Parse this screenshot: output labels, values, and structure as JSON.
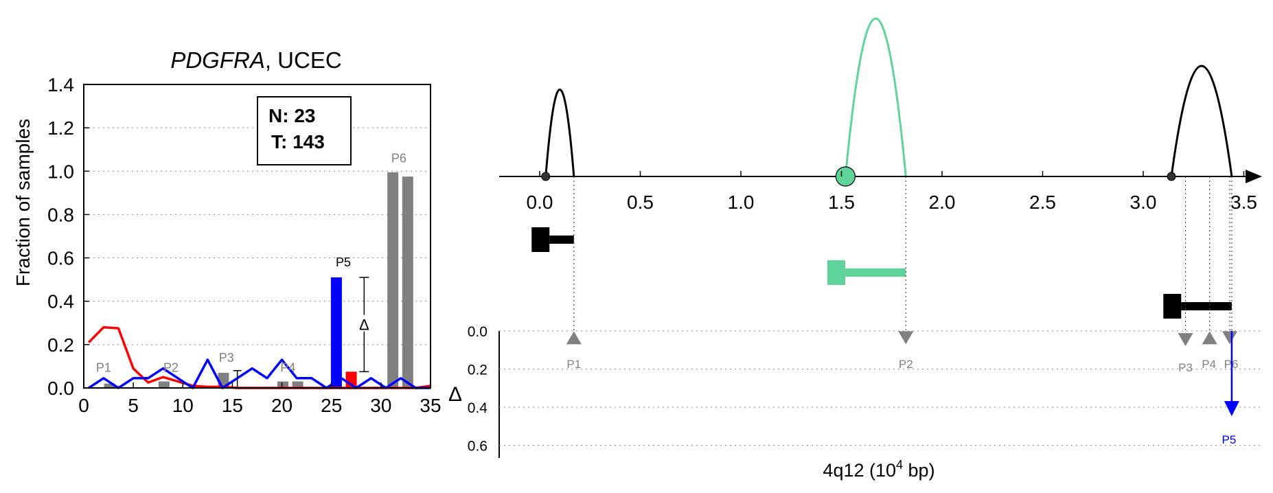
{
  "chart_data": [
    {
      "type": "bar",
      "title_gene": "PDGFRA",
      "title_rest": ", UCEC",
      "ylabel": "Fraction of samples",
      "xlim": [
        0,
        35
      ],
      "ylim": [
        0,
        1.4
      ],
      "xticks": [
        "0",
        "5",
        "10",
        "15",
        "20",
        "25",
        "30",
        "35"
      ],
      "yticks": [
        "0.0",
        "0.2",
        "0.4",
        "0.6",
        "0.8",
        "1.0",
        "1.2",
        "1.4"
      ],
      "grid": "horizontal dotted",
      "counts": {
        "n_label": "N: 23",
        "t_label": "T: 143"
      },
      "colors": {
        "tumor": "#0000ff",
        "normal": "#ff0000",
        "peak": "#808080"
      },
      "series": [
        {
          "color": "#ff0000",
          "x": [
            0.5,
            2,
            3.5,
            5,
            6.5,
            8,
            9.5,
            11,
            12.5,
            14,
            15.5,
            17,
            18.5,
            20,
            21.5,
            23,
            24.5,
            26,
            27.5,
            29,
            30.5,
            32,
            33.5,
            35
          ],
          "y": [
            0.21,
            0.28,
            0.275,
            0.09,
            0.025,
            0.05,
            0.03,
            0.01,
            0.005,
            0.005,
            0,
            0,
            0,
            0,
            0,
            0,
            0,
            0,
            0,
            0,
            0,
            0,
            0,
            0.01
          ]
        },
        {
          "color": "#0000ff",
          "x": [
            0.5,
            2,
            3.5,
            5,
            6.5,
            8,
            9.5,
            11,
            12.5,
            14,
            15.5,
            17,
            18.5,
            20,
            21.5,
            23,
            24.5,
            26,
            27.5,
            29,
            30.5,
            32,
            33.5,
            35
          ],
          "y": [
            0,
            0.045,
            0,
            0.045,
            0.045,
            0.09,
            0.045,
            0,
            0.13,
            0,
            0.045,
            0.09,
            0.045,
            0.13,
            0.045,
            0.045,
            0,
            0.045,
            0,
            0.045,
            0,
            0.045,
            0,
            0
          ]
        }
      ],
      "bars": [
        {
          "x": 25.5,
          "value": 0.51,
          "color": "#0000ff"
        },
        {
          "x": 27.0,
          "value": 0.075,
          "color": "#ff0000"
        },
        {
          "x": 31.2,
          "value": 0.995,
          "color": "#808080"
        },
        {
          "x": 32.7,
          "value": 0.975,
          "color": "#808080"
        },
        {
          "x": 8.1,
          "value": 0.03,
          "color": "#808080"
        },
        {
          "x": 14.1,
          "value": 0.07,
          "color": "#808080"
        },
        {
          "x": 20.1,
          "value": 0.03,
          "color": "#808080"
        },
        {
          "x": 21.6,
          "value": 0.03,
          "color": "#808080"
        },
        {
          "x": 2.6,
          "value": 0.02,
          "color": "#808080"
        }
      ],
      "peak_labels": [
        {
          "label": "P1",
          "x": 2.0,
          "y": 0.075,
          "color": "#808080"
        },
        {
          "label": "P2",
          "x": 8.8,
          "y": 0.075,
          "color": "#808080"
        },
        {
          "label": "P3",
          "x": 14.4,
          "y": 0.12,
          "color": "#808080"
        },
        {
          "label": "P4",
          "x": 20.6,
          "y": 0.075,
          "color": "#808080"
        },
        {
          "label": "P5",
          "x": 26.2,
          "y": 0.56,
          "color": "#000000"
        },
        {
          "label": "P6",
          "x": 31.8,
          "y": 1.04,
          "color": "#808080"
        }
      ],
      "delta_bracket": {
        "x": 28.3,
        "y_top": 0.51,
        "y_bottom": 0.075,
        "label": "Δ"
      },
      "small_bracket": {
        "x": 15.5,
        "y_top": 0.08,
        "y_bottom": 0.0
      }
    },
    {
      "type": "genome-track",
      "xlabel_main": "4q12 (10",
      "xlabel_sup": "4",
      "xlabel_end": " bp)",
      "xlim": [
        -0.2,
        3.7
      ],
      "xticks": [
        "0.0",
        "0.5",
        "1.0",
        "1.5",
        "2.0",
        "2.5",
        "3.0",
        "3.5"
      ],
      "delta_label": "Δ",
      "delta_ylim": [
        0,
        0.65
      ],
      "delta_yticks": [
        "0.0",
        "0.2",
        "0.4",
        "0.6"
      ],
      "arcs": [
        {
          "start": 0.03,
          "end": 0.17,
          "height": 0.55,
          "color": "#000000",
          "marker": "dot"
        },
        {
          "start": 1.52,
          "end": 1.82,
          "height": 1.0,
          "color": "#5ed49a",
          "marker": "circle"
        },
        {
          "start": 3.14,
          "end": 3.44,
          "height": 0.7,
          "color": "#000000",
          "marker": "dot"
        }
      ],
      "transcripts": [
        {
          "start": -0.04,
          "end": 0.17,
          "row": 0,
          "color": "#000000"
        },
        {
          "start": 1.43,
          "end": 1.82,
          "row": 1,
          "color": "#5ed49a"
        },
        {
          "start": 3.1,
          "end": 3.44,
          "row": 2,
          "color": "#000000"
        }
      ],
      "peaks": [
        {
          "label": "P1",
          "x": 0.17,
          "delta": 0.03,
          "direction": "up",
          "color": "#808080"
        },
        {
          "label": "P2",
          "x": 1.82,
          "delta": 0.03,
          "direction": "down",
          "color": "#808080"
        },
        {
          "label": "P3",
          "x": 3.21,
          "delta": 0.04,
          "direction": "down",
          "color": "#808080"
        },
        {
          "label": "P4",
          "x": 3.33,
          "delta": 0.03,
          "direction": "up",
          "color": "#808080"
        },
        {
          "label": "P6",
          "x": 3.43,
          "delta": 0.03,
          "direction": "down",
          "color": "#808080"
        },
        {
          "label": "P5",
          "x": 3.44,
          "delta": 0.44,
          "direction": "down",
          "color": "#0000ff"
        }
      ]
    }
  ]
}
